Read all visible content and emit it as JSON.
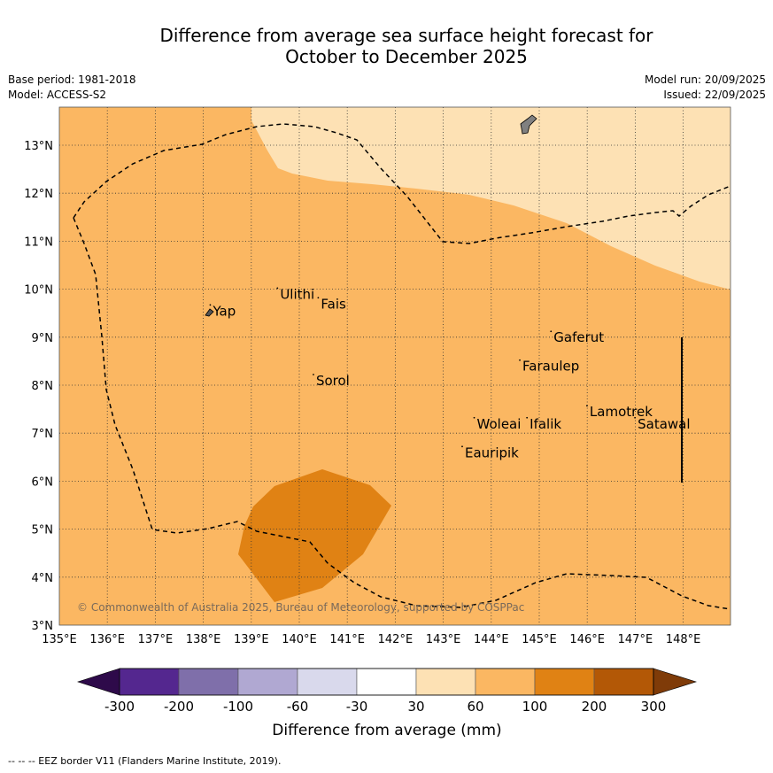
{
  "title": {
    "line1": "Difference from average sea surface height forecast for",
    "line2": "October to December 2025"
  },
  "meta": {
    "base_period": "Base period: 1981-2018",
    "model": "Model: ACCESS-S2",
    "model_run": "Model run: 20/09/2025",
    "issued": "Issued: 22/09/2025"
  },
  "map": {
    "lon_ticks": [
      "135°E",
      "136°E",
      "137°E",
      "138°E",
      "139°E",
      "140°E",
      "141°E",
      "142°E",
      "143°E",
      "144°E",
      "145°E",
      "146°E",
      "147°E",
      "148°E"
    ],
    "lat_ticks": [
      "3°N",
      "4°N",
      "5°N",
      "6°N",
      "7°N",
      "8°N",
      "9°N",
      "10°N",
      "11°N",
      "12°N",
      "13°N"
    ],
    "copyright": "© Commonwealth of Australia 2025, Bureau of Meteorology, supported by COSPPac",
    "islands": [
      {
        "name": "Yap",
        "lon": 138.2,
        "lat": 9.45
      },
      {
        "name": "Ulithi",
        "lon": 139.6,
        "lat": 9.8
      },
      {
        "name": "Fais",
        "lon": 140.45,
        "lat": 9.6
      },
      {
        "name": "Sorol",
        "lon": 140.35,
        "lat": 8.0
      },
      {
        "name": "Gaferut",
        "lon": 145.3,
        "lat": 8.9
      },
      {
        "name": "Faraulep",
        "lon": 144.65,
        "lat": 8.3
      },
      {
        "name": "Woleai",
        "lon": 143.7,
        "lat": 7.1
      },
      {
        "name": "Ifalik",
        "lon": 144.8,
        "lat": 7.1
      },
      {
        "name": "Lamotrek",
        "lon": 146.05,
        "lat": 7.35
      },
      {
        "name": "Satawal",
        "lon": 147.05,
        "lat": 7.1
      },
      {
        "name": "Eauripik",
        "lon": 143.45,
        "lat": 6.5
      }
    ]
  },
  "colorbar": {
    "tick_labels": [
      "-300",
      "-200",
      "-100",
      "-60",
      "-30",
      "30",
      "60",
      "100",
      "200",
      "300"
    ],
    "colors": [
      "#2e0a4a",
      "#54278f",
      "#7f6faa",
      "#b0a8d2",
      "#d9d9ec",
      "#ffffff",
      "#fde1b4",
      "#fbb762",
      "#e08214",
      "#b35806",
      "#7f3b08"
    ],
    "label": "Difference from average (mm)"
  },
  "footer": "--  --  -- EEZ border V11 (Flanders Marine Institute, 2019)."
}
